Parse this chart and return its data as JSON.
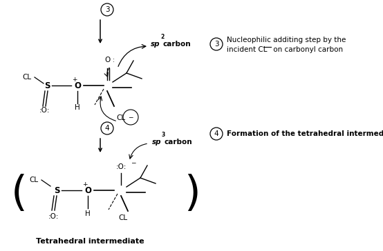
{
  "bg_color": "#ffffff",
  "fig_width": 5.54,
  "fig_height": 3.64,
  "note3_line1": "Nucleophilic additing step by the",
  "note3_line2": "incident CL̅ on carbonyl carbon",
  "note4_line1": "Formation of the tetrahedral intermediate",
  "tetrahedral_label": "Tetrahedral intermediate"
}
